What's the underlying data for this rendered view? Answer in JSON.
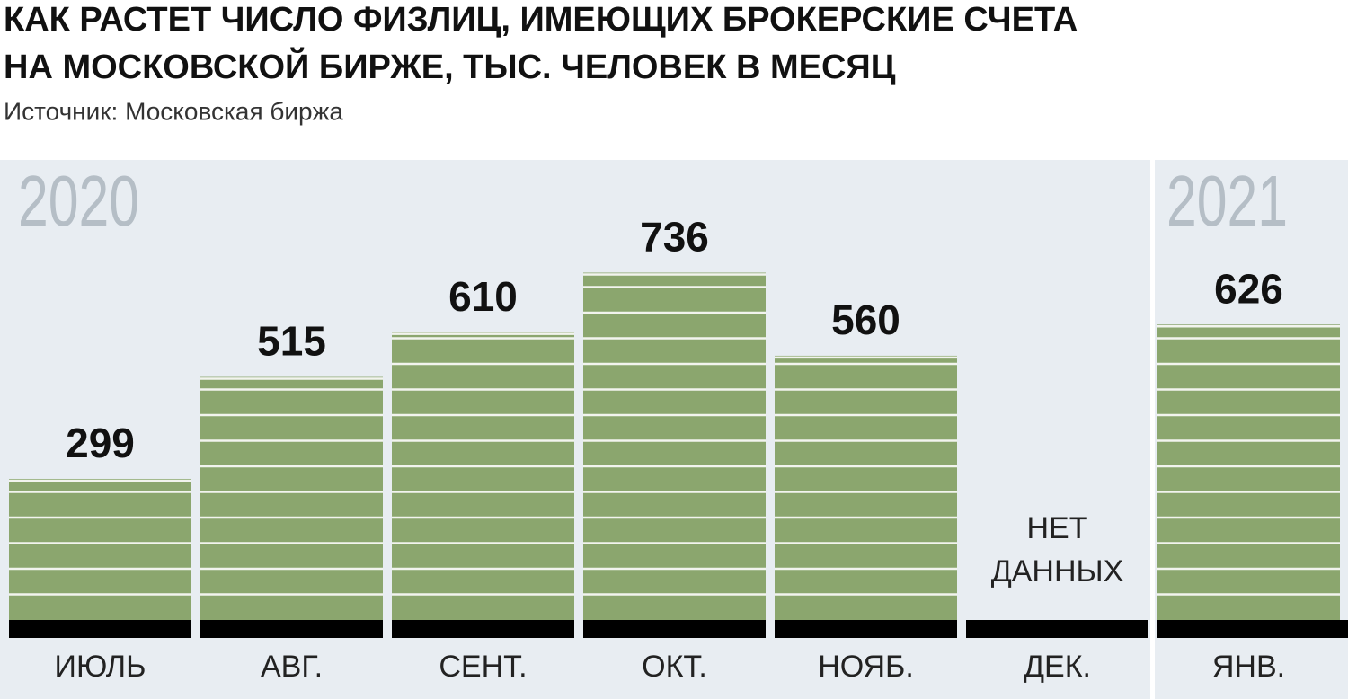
{
  "chart_data": {
    "type": "bar",
    "title": [
      "КАК РАСТЕТ ЧИСЛО ФИЗЛИЦ, ИМЕЮЩИХ БРОКЕРСКИЕ СЧЕТА",
      "НА МОСКОВСКОЙ БИРЖЕ, ТЫС. ЧЕЛОВЕК В МЕСЯЦ"
    ],
    "source": "Источник: Московская биржа",
    "categories": [
      "ИЮЛЬ",
      "АВГ.",
      "СЕНТ.",
      "ОКТ.",
      "НОЯБ.",
      "ДЕК.",
      "ЯНВ."
    ],
    "year_labels": [
      "2020",
      null,
      null,
      null,
      null,
      null,
      "2021"
    ],
    "values": [
      299,
      515,
      610,
      736,
      560,
      null,
      626
    ],
    "no_data_label": [
      "НЕТ",
      "ДАННЫХ"
    ],
    "color": "#8ba66e",
    "ylim": [
      0,
      975
    ]
  }
}
